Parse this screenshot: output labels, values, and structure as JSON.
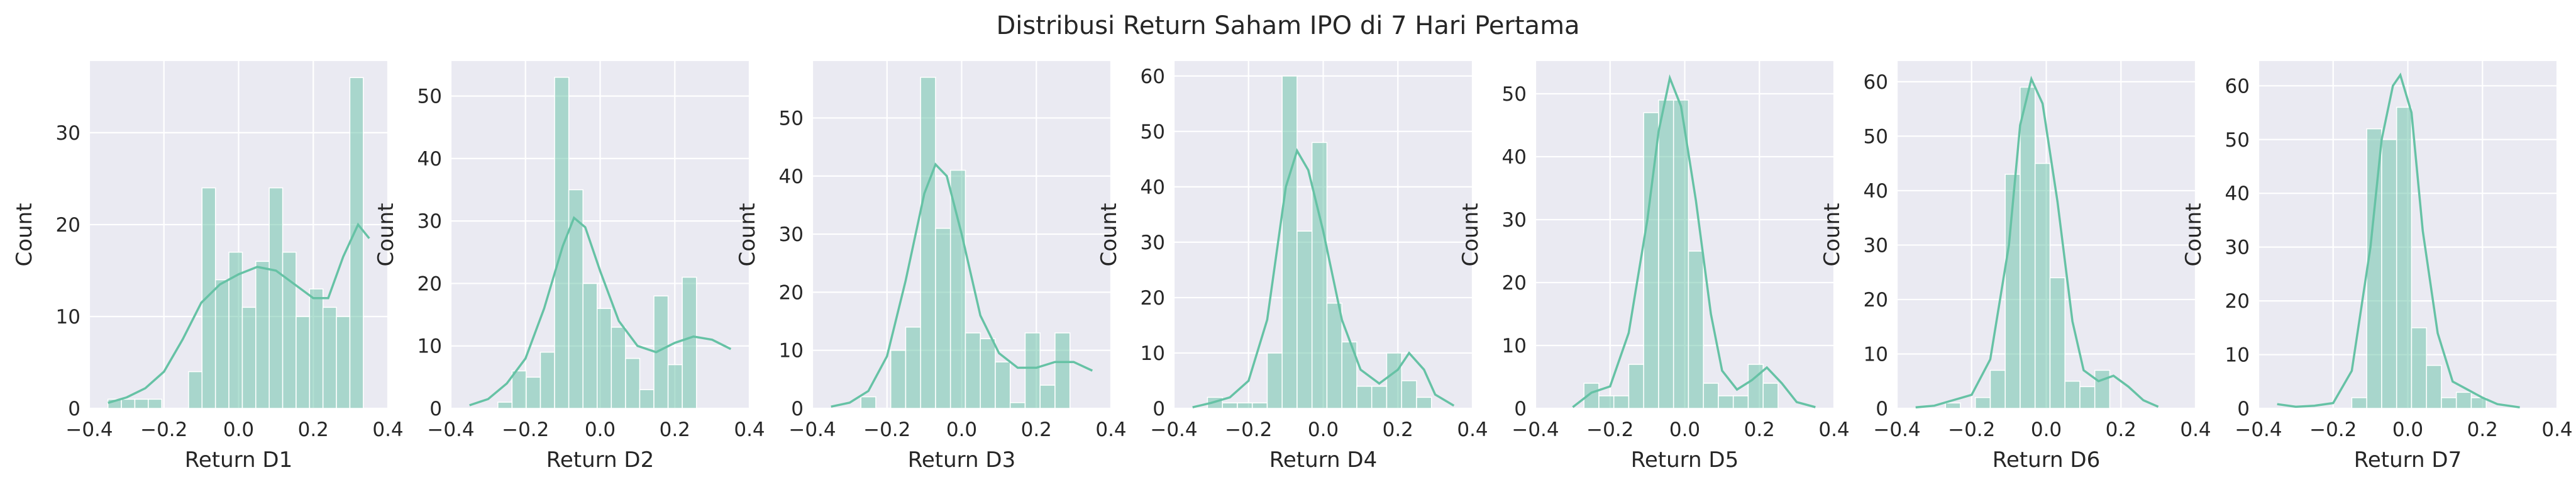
{
  "figure": {
    "title": "Distribusi Return Saham IPO di 7 Hari Pertama",
    "colors": {
      "bar_fill": "#66c2a5",
      "kde_line": "#66c2a5",
      "axes_bg": "#eaeaf2",
      "grid": "#ffffff",
      "text": "#262626"
    }
  },
  "chart_data": [
    {
      "type": "bar",
      "xlabel": "Return D1",
      "ylabel": "Count",
      "xlim": [
        -0.4,
        0.4
      ],
      "ylim": [
        0,
        37.8
      ],
      "xticks": [
        "−0.4",
        "−0.2",
        "0.0",
        "0.2",
        "0.4"
      ],
      "yticks": [
        0,
        10,
        20,
        30
      ],
      "bins": [
        [
          -0.35,
          -0.314,
          1
        ],
        [
          -0.314,
          -0.278,
          1
        ],
        [
          -0.278,
          -0.242,
          1
        ],
        [
          -0.242,
          -0.206,
          1
        ],
        [
          -0.206,
          -0.17,
          0
        ],
        [
          -0.17,
          -0.134,
          0
        ],
        [
          -0.134,
          -0.098,
          4
        ],
        [
          -0.098,
          -0.062,
          24
        ],
        [
          -0.062,
          -0.026,
          14
        ],
        [
          -0.026,
          0.01,
          17
        ],
        [
          0.01,
          0.046,
          11
        ],
        [
          0.046,
          0.082,
          16
        ],
        [
          0.082,
          0.118,
          24
        ],
        [
          0.118,
          0.154,
          17
        ],
        [
          0.154,
          0.19,
          10
        ],
        [
          0.19,
          0.226,
          13
        ],
        [
          0.226,
          0.262,
          11
        ],
        [
          0.262,
          0.298,
          10
        ],
        [
          0.298,
          0.334,
          36
        ],
        [
          0.334,
          0.35,
          0
        ]
      ],
      "kde": [
        [
          -0.35,
          0.6
        ],
        [
          -0.3,
          1.2
        ],
        [
          -0.25,
          2.2
        ],
        [
          -0.2,
          4.0
        ],
        [
          -0.15,
          7.5
        ],
        [
          -0.1,
          11.5
        ],
        [
          -0.05,
          13.5
        ],
        [
          0.0,
          14.6
        ],
        [
          0.05,
          15.4
        ],
        [
          0.1,
          15.0
        ],
        [
          0.15,
          13.5
        ],
        [
          0.2,
          12.0
        ],
        [
          0.24,
          12.0
        ],
        [
          0.28,
          16.5
        ],
        [
          0.32,
          20.0
        ],
        [
          0.35,
          18.5
        ]
      ]
    },
    {
      "type": "bar",
      "xlabel": "Return D2",
      "ylabel": "Count",
      "xlim": [
        -0.4,
        0.4
      ],
      "ylim": [
        0,
        55.6
      ],
      "xticks": [
        "−0.4",
        "−0.2",
        "0.0",
        "0.2",
        "0.4"
      ],
      "yticks": [
        0,
        10,
        20,
        30,
        40,
        50
      ],
      "bins": [
        [
          -0.35,
          -0.312,
          0
        ],
        [
          -0.312,
          -0.274,
          0
        ],
        [
          -0.274,
          -0.236,
          1
        ],
        [
          -0.236,
          -0.198,
          6
        ],
        [
          -0.198,
          -0.16,
          5
        ],
        [
          -0.16,
          -0.122,
          9
        ],
        [
          -0.122,
          -0.084,
          53
        ],
        [
          -0.084,
          -0.046,
          35
        ],
        [
          -0.046,
          -0.008,
          20
        ],
        [
          -0.008,
          0.03,
          16
        ],
        [
          0.03,
          0.068,
          13
        ],
        [
          0.068,
          0.106,
          8
        ],
        [
          0.106,
          0.144,
          3
        ],
        [
          0.144,
          0.182,
          18
        ],
        [
          0.182,
          0.22,
          7
        ],
        [
          0.22,
          0.258,
          21
        ],
        [
          0.258,
          0.296,
          0
        ],
        [
          0.296,
          0.35,
          0
        ]
      ],
      "kde": [
        [
          -0.35,
          0.5
        ],
        [
          -0.3,
          1.5
        ],
        [
          -0.25,
          4.0
        ],
        [
          -0.2,
          8.0
        ],
        [
          -0.15,
          16.0
        ],
        [
          -0.1,
          26.0
        ],
        [
          -0.07,
          30.5
        ],
        [
          -0.04,
          29.0
        ],
        [
          0.0,
          22.0
        ],
        [
          0.05,
          14.0
        ],
        [
          0.1,
          10.0
        ],
        [
          0.15,
          9.0
        ],
        [
          0.2,
          10.5
        ],
        [
          0.25,
          11.5
        ],
        [
          0.3,
          11.0
        ],
        [
          0.35,
          9.5
        ]
      ]
    },
    {
      "type": "bar",
      "xlabel": "Return D3",
      "ylabel": "Count",
      "xlim": [
        -0.4,
        0.4
      ],
      "ylim": [
        0,
        59.8
      ],
      "xticks": [
        "−0.4",
        "−0.2",
        "0.0",
        "0.2",
        "0.4"
      ],
      "yticks": [
        0,
        10,
        20,
        30,
        40,
        50
      ],
      "bins": [
        [
          -0.35,
          -0.31,
          0
        ],
        [
          -0.31,
          -0.27,
          0
        ],
        [
          -0.27,
          -0.23,
          2
        ],
        [
          -0.23,
          -0.19,
          0
        ],
        [
          -0.19,
          -0.15,
          10
        ],
        [
          -0.15,
          -0.11,
          14
        ],
        [
          -0.11,
          -0.07,
          57
        ],
        [
          -0.07,
          -0.03,
          31
        ],
        [
          -0.03,
          0.01,
          41
        ],
        [
          0.01,
          0.05,
          13
        ],
        [
          0.05,
          0.09,
          12
        ],
        [
          0.09,
          0.13,
          8
        ],
        [
          0.13,
          0.17,
          1
        ],
        [
          0.17,
          0.21,
          13
        ],
        [
          0.21,
          0.25,
          4
        ],
        [
          0.25,
          0.29,
          13
        ],
        [
          0.29,
          0.35,
          0
        ]
      ],
      "kde": [
        [
          -0.35,
          0.3
        ],
        [
          -0.3,
          1.0
        ],
        [
          -0.25,
          3.0
        ],
        [
          -0.2,
          9.0
        ],
        [
          -0.15,
          22.0
        ],
        [
          -0.1,
          37.0
        ],
        [
          -0.07,
          42.0
        ],
        [
          -0.04,
          40.0
        ],
        [
          0.0,
          30.0
        ],
        [
          0.05,
          16.0
        ],
        [
          0.1,
          9.5
        ],
        [
          0.15,
          7.0
        ],
        [
          0.2,
          7.0
        ],
        [
          0.25,
          8.0
        ],
        [
          0.3,
          8.0
        ],
        [
          0.35,
          6.5
        ]
      ]
    },
    {
      "type": "bar",
      "xlabel": "Return D4",
      "ylabel": "Count",
      "xlim": [
        -0.4,
        0.4
      ],
      "ylim": [
        0,
        62.7
      ],
      "xticks": [
        "−0.4",
        "−0.2",
        "0.0",
        "0.2",
        "0.4"
      ],
      "yticks": [
        0,
        10,
        20,
        30,
        40,
        50,
        60
      ],
      "bins": [
        [
          -0.35,
          -0.31,
          0
        ],
        [
          -0.31,
          -0.27,
          2
        ],
        [
          -0.27,
          -0.23,
          1
        ],
        [
          -0.23,
          -0.19,
          1
        ],
        [
          -0.19,
          -0.15,
          1
        ],
        [
          -0.15,
          -0.11,
          10
        ],
        [
          -0.11,
          -0.07,
          60
        ],
        [
          -0.07,
          -0.03,
          32
        ],
        [
          -0.03,
          0.01,
          48
        ],
        [
          0.01,
          0.05,
          19
        ],
        [
          0.05,
          0.09,
          12
        ],
        [
          0.09,
          0.13,
          4
        ],
        [
          0.13,
          0.17,
          4
        ],
        [
          0.17,
          0.21,
          10
        ],
        [
          0.21,
          0.25,
          5
        ],
        [
          0.25,
          0.29,
          2
        ],
        [
          0.29,
          0.35,
          0
        ]
      ],
      "kde": [
        [
          -0.35,
          0.2
        ],
        [
          -0.3,
          1.0
        ],
        [
          -0.25,
          2.0
        ],
        [
          -0.2,
          5.0
        ],
        [
          -0.15,
          16.0
        ],
        [
          -0.1,
          40.0
        ],
        [
          -0.07,
          46.5
        ],
        [
          -0.04,
          43.0
        ],
        [
          0.0,
          32.0
        ],
        [
          0.05,
          16.0
        ],
        [
          0.1,
          7.0
        ],
        [
          0.15,
          4.5
        ],
        [
          0.2,
          7.0
        ],
        [
          0.23,
          10.0
        ],
        [
          0.27,
          7.0
        ],
        [
          0.3,
          2.5
        ],
        [
          0.35,
          0.5
        ]
      ]
    },
    {
      "type": "bar",
      "xlabel": "Return D5",
      "ylabel": "Count",
      "xlim": [
        -0.4,
        0.4
      ],
      "ylim": [
        0,
        55.2
      ],
      "xticks": [
        "−0.4",
        "−0.2",
        "0.0",
        "0.2",
        "0.4"
      ],
      "yticks": [
        0,
        10,
        20,
        30,
        40,
        50
      ],
      "bins": [
        [
          -0.35,
          -0.31,
          0
        ],
        [
          -0.31,
          -0.27,
          0
        ],
        [
          -0.27,
          -0.23,
          4
        ],
        [
          -0.23,
          -0.19,
          2
        ],
        [
          -0.19,
          -0.15,
          2
        ],
        [
          -0.15,
          -0.11,
          7
        ],
        [
          -0.11,
          -0.07,
          47
        ],
        [
          -0.07,
          -0.03,
          49
        ],
        [
          -0.03,
          0.01,
          49
        ],
        [
          0.01,
          0.05,
          25
        ],
        [
          0.05,
          0.09,
          4
        ],
        [
          0.09,
          0.13,
          2
        ],
        [
          0.13,
          0.17,
          2
        ],
        [
          0.17,
          0.21,
          7
        ],
        [
          0.21,
          0.25,
          4
        ],
        [
          0.25,
          0.29,
          0
        ],
        [
          0.29,
          0.35,
          0
        ]
      ],
      "kde": [
        [
          -0.3,
          0.2
        ],
        [
          -0.25,
          2.5
        ],
        [
          -0.2,
          3.5
        ],
        [
          -0.15,
          12.0
        ],
        [
          -0.1,
          30.0
        ],
        [
          -0.07,
          44.0
        ],
        [
          -0.04,
          52.5
        ],
        [
          -0.01,
          48.0
        ],
        [
          0.03,
          33.0
        ],
        [
          0.07,
          15.0
        ],
        [
          0.1,
          6.0
        ],
        [
          0.14,
          3.0
        ],
        [
          0.18,
          4.5
        ],
        [
          0.22,
          6.5
        ],
        [
          0.26,
          4.0
        ],
        [
          0.3,
          1.0
        ],
        [
          0.35,
          0.2
        ]
      ]
    },
    {
      "type": "bar",
      "xlabel": "Return D6",
      "ylabel": "Count",
      "xlim": [
        -0.4,
        0.4
      ],
      "ylim": [
        0,
        63.8
      ],
      "xticks": [
        "−0.4",
        "−0.2",
        "0.0",
        "0.2",
        "0.4"
      ],
      "yticks": [
        0,
        10,
        20,
        30,
        40,
        50,
        60
      ],
      "bins": [
        [
          -0.35,
          -0.31,
          0
        ],
        [
          -0.31,
          -0.27,
          0
        ],
        [
          -0.27,
          -0.23,
          1
        ],
        [
          -0.23,
          -0.19,
          0
        ],
        [
          -0.19,
          -0.15,
          2
        ],
        [
          -0.15,
          -0.11,
          7
        ],
        [
          -0.11,
          -0.07,
          43
        ],
        [
          -0.07,
          -0.03,
          59
        ],
        [
          -0.03,
          0.01,
          45
        ],
        [
          0.01,
          0.05,
          24
        ],
        [
          0.05,
          0.09,
          5
        ],
        [
          0.09,
          0.13,
          4
        ],
        [
          0.13,
          0.17,
          7
        ],
        [
          0.17,
          0.21,
          0
        ],
        [
          0.21,
          0.35,
          0
        ]
      ],
      "kde": [
        [
          -0.35,
          0.2
        ],
        [
          -0.3,
          0.5
        ],
        [
          -0.25,
          1.5
        ],
        [
          -0.2,
          2.5
        ],
        [
          -0.15,
          9.0
        ],
        [
          -0.1,
          30.0
        ],
        [
          -0.07,
          52.0
        ],
        [
          -0.04,
          60.5
        ],
        [
          -0.01,
          56.0
        ],
        [
          0.03,
          38.0
        ],
        [
          0.07,
          16.0
        ],
        [
          0.1,
          7.0
        ],
        [
          0.14,
          5.0
        ],
        [
          0.18,
          6.0
        ],
        [
          0.22,
          4.0
        ],
        [
          0.26,
          1.5
        ],
        [
          0.3,
          0.3
        ]
      ]
    },
    {
      "type": "bar",
      "xlabel": "Return D7",
      "ylabel": "Count",
      "xlim": [
        -0.4,
        0.4
      ],
      "ylim": [
        0,
        64.6
      ],
      "xticks": [
        "−0.4",
        "−0.2",
        "0.0",
        "0.2",
        "0.4"
      ],
      "yticks": [
        0,
        10,
        20,
        30,
        40,
        50,
        60
      ],
      "bins": [
        [
          -0.35,
          -0.31,
          0
        ],
        [
          -0.31,
          -0.27,
          0
        ],
        [
          -0.27,
          -0.23,
          0
        ],
        [
          -0.23,
          -0.19,
          0
        ],
        [
          -0.19,
          -0.15,
          0
        ],
        [
          -0.15,
          -0.11,
          2
        ],
        [
          -0.11,
          -0.07,
          52
        ],
        [
          -0.07,
          -0.03,
          50
        ],
        [
          -0.03,
          0.01,
          56
        ],
        [
          0.01,
          0.05,
          15
        ],
        [
          0.05,
          0.09,
          8
        ],
        [
          0.09,
          0.13,
          2
        ],
        [
          0.13,
          0.17,
          3
        ],
        [
          0.17,
          0.21,
          2
        ],
        [
          0.21,
          0.35,
          0
        ]
      ],
      "kde": [
        [
          -0.35,
          0.8
        ],
        [
          -0.3,
          0.3
        ],
        [
          -0.25,
          0.5
        ],
        [
          -0.2,
          1.0
        ],
        [
          -0.15,
          7.0
        ],
        [
          -0.1,
          30.0
        ],
        [
          -0.07,
          50.0
        ],
        [
          -0.04,
          60.0
        ],
        [
          -0.02,
          62.0
        ],
        [
          0.01,
          55.0
        ],
        [
          0.04,
          33.0
        ],
        [
          0.08,
          14.0
        ],
        [
          0.12,
          5.0
        ],
        [
          0.16,
          3.5
        ],
        [
          0.2,
          2.0
        ],
        [
          0.24,
          0.8
        ],
        [
          0.3,
          0.2
        ]
      ]
    }
  ]
}
